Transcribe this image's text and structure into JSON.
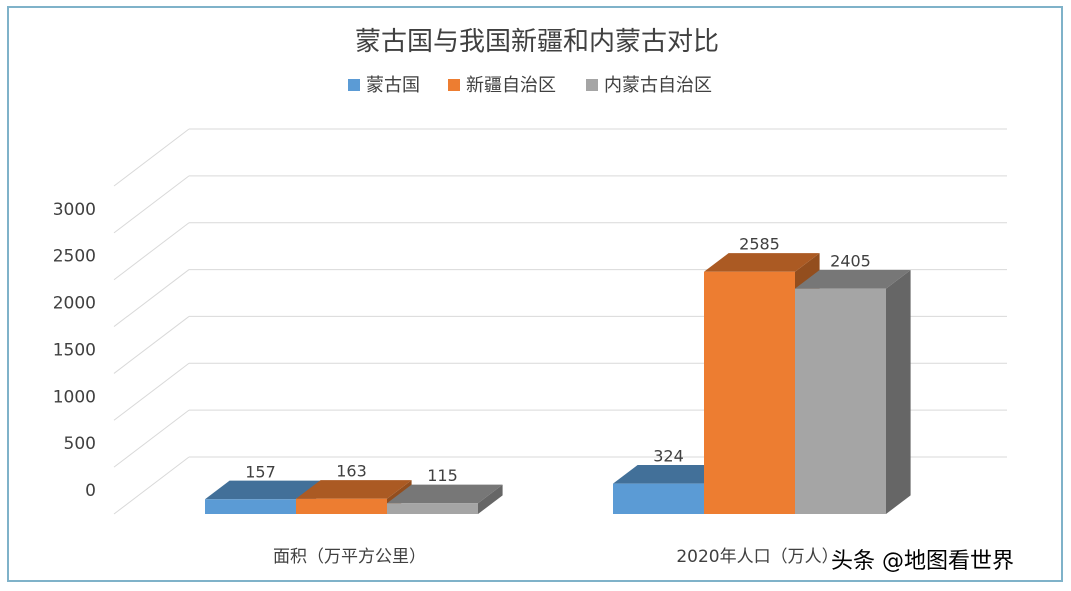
{
  "chart_data": {
    "type": "bar",
    "title": "蒙古国与我国新疆和内蒙古对比",
    "categories": [
      "面积（万平方公里）",
      "2020年人口（万人）"
    ],
    "series": [
      {
        "name": "蒙古国",
        "values": [
          157,
          324
        ],
        "color": "#5b9bd5"
      },
      {
        "name": "新疆自治区",
        "values": [
          163,
          2585
        ],
        "color": "#ed7d31"
      },
      {
        "name": "内蒙古自治区",
        "values": [
          115,
          2405
        ],
        "color": "#a5a5a5"
      }
    ],
    "yticks": [
      0,
      500,
      1000,
      1500,
      2000,
      2500,
      3000
    ],
    "ylim": [
      0,
      3500
    ],
    "grid": true,
    "legend_position": "top",
    "style": "3d-column"
  },
  "watermark": "头条 @地图看世界"
}
